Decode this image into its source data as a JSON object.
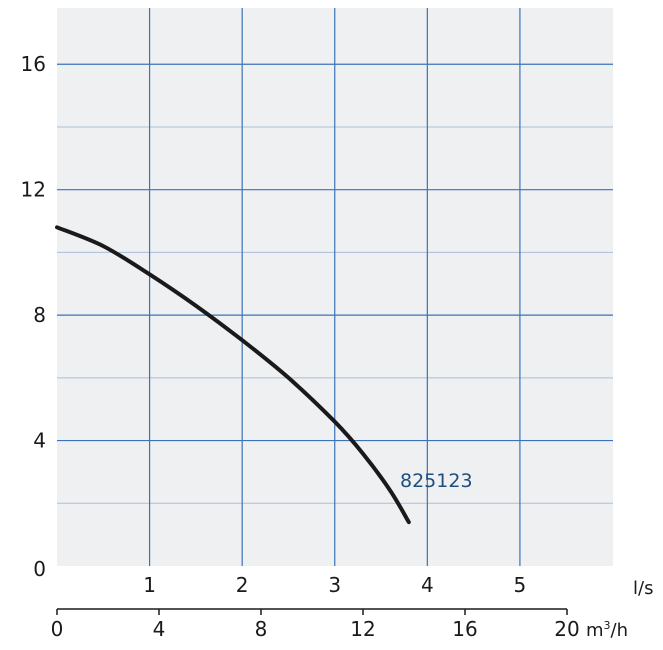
{
  "chart_data": {
    "type": "line",
    "title": "",
    "xlabel": "l/s",
    "x2label_main": "m",
    "x2label_sup": "3",
    "x2label_tail": "/h",
    "ylabel": "",
    "xlim": [
      0,
      6
    ],
    "ylim": [
      0,
      18
    ],
    "x_ticks": [
      1,
      2,
      3,
      4,
      5
    ],
    "x_tick_labels": [
      "1",
      "2",
      "3",
      "4",
      "5"
    ],
    "x2_ticks": [
      0,
      4,
      8,
      12,
      16,
      20
    ],
    "x2_tick_labels": [
      "0",
      "4",
      "8",
      "12",
      "16",
      "20"
    ],
    "y_ticks": [
      0,
      4,
      8,
      12,
      16
    ],
    "y_tick_labels": [
      "0",
      "4",
      "8",
      "12",
      "16"
    ],
    "y_minor_gridlines": [
      2,
      6,
      10,
      14
    ],
    "grid": true,
    "series": [
      {
        "name": "825123",
        "color": "#1a1a1a",
        "x": [
          0,
          0.5,
          1.0,
          1.5,
          2.0,
          2.5,
          3.0,
          3.3,
          3.6,
          3.8
        ],
        "y": [
          10.8,
          10.2,
          9.3,
          8.3,
          7.2,
          6.0,
          4.6,
          3.6,
          2.4,
          1.4
        ]
      }
    ],
    "colors": {
      "plot_bg": "#eef0f2",
      "major_grid": "#3b73b8",
      "minor_grid": "#a9bfd8",
      "axis": "#1a1a1a",
      "label": "#1f4f7a"
    }
  }
}
